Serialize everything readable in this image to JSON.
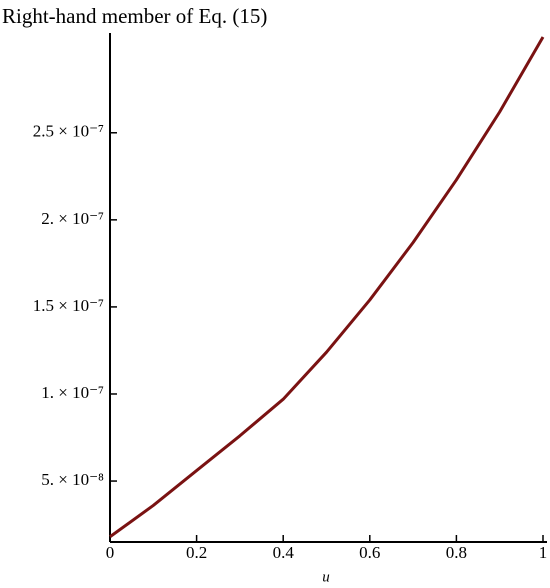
{
  "chart_data": {
    "type": "line",
    "title": "Right-hand member of Eq. (15)",
    "x_label": "u",
    "x": [
      0,
      0.1,
      0.2,
      0.3,
      0.4,
      0.5,
      0.6,
      0.7,
      0.8,
      0.9,
      1
    ],
    "series": [
      {
        "color": "#7a1212",
        "values": [
          1.8e-08,
          3.6e-08,
          5.6e-08,
          7.6e-08,
          9.7e-08,
          1.24e-07,
          1.54e-07,
          1.87e-07,
          2.23e-07,
          2.62e-07,
          3.05e-07
        ]
      }
    ],
    "xlim": [
      0,
      1
    ],
    "ylim": [
      1.5e-08,
      3.05e-07
    ],
    "xticks": [
      0,
      0.2,
      0.4,
      0.6,
      0.8,
      1
    ],
    "yticks": [
      {
        "value": 5e-08,
        "label": "5. × 10⁻⁸"
      },
      {
        "value": 1e-07,
        "label": "1. × 10⁻⁷"
      },
      {
        "value": 1.5e-07,
        "label": "1.5 × 10⁻⁷"
      },
      {
        "value": 2e-07,
        "label": "2. × 10⁻⁷"
      },
      {
        "value": 2.5e-07,
        "label": "2.5 × 10⁻⁷"
      }
    ]
  }
}
